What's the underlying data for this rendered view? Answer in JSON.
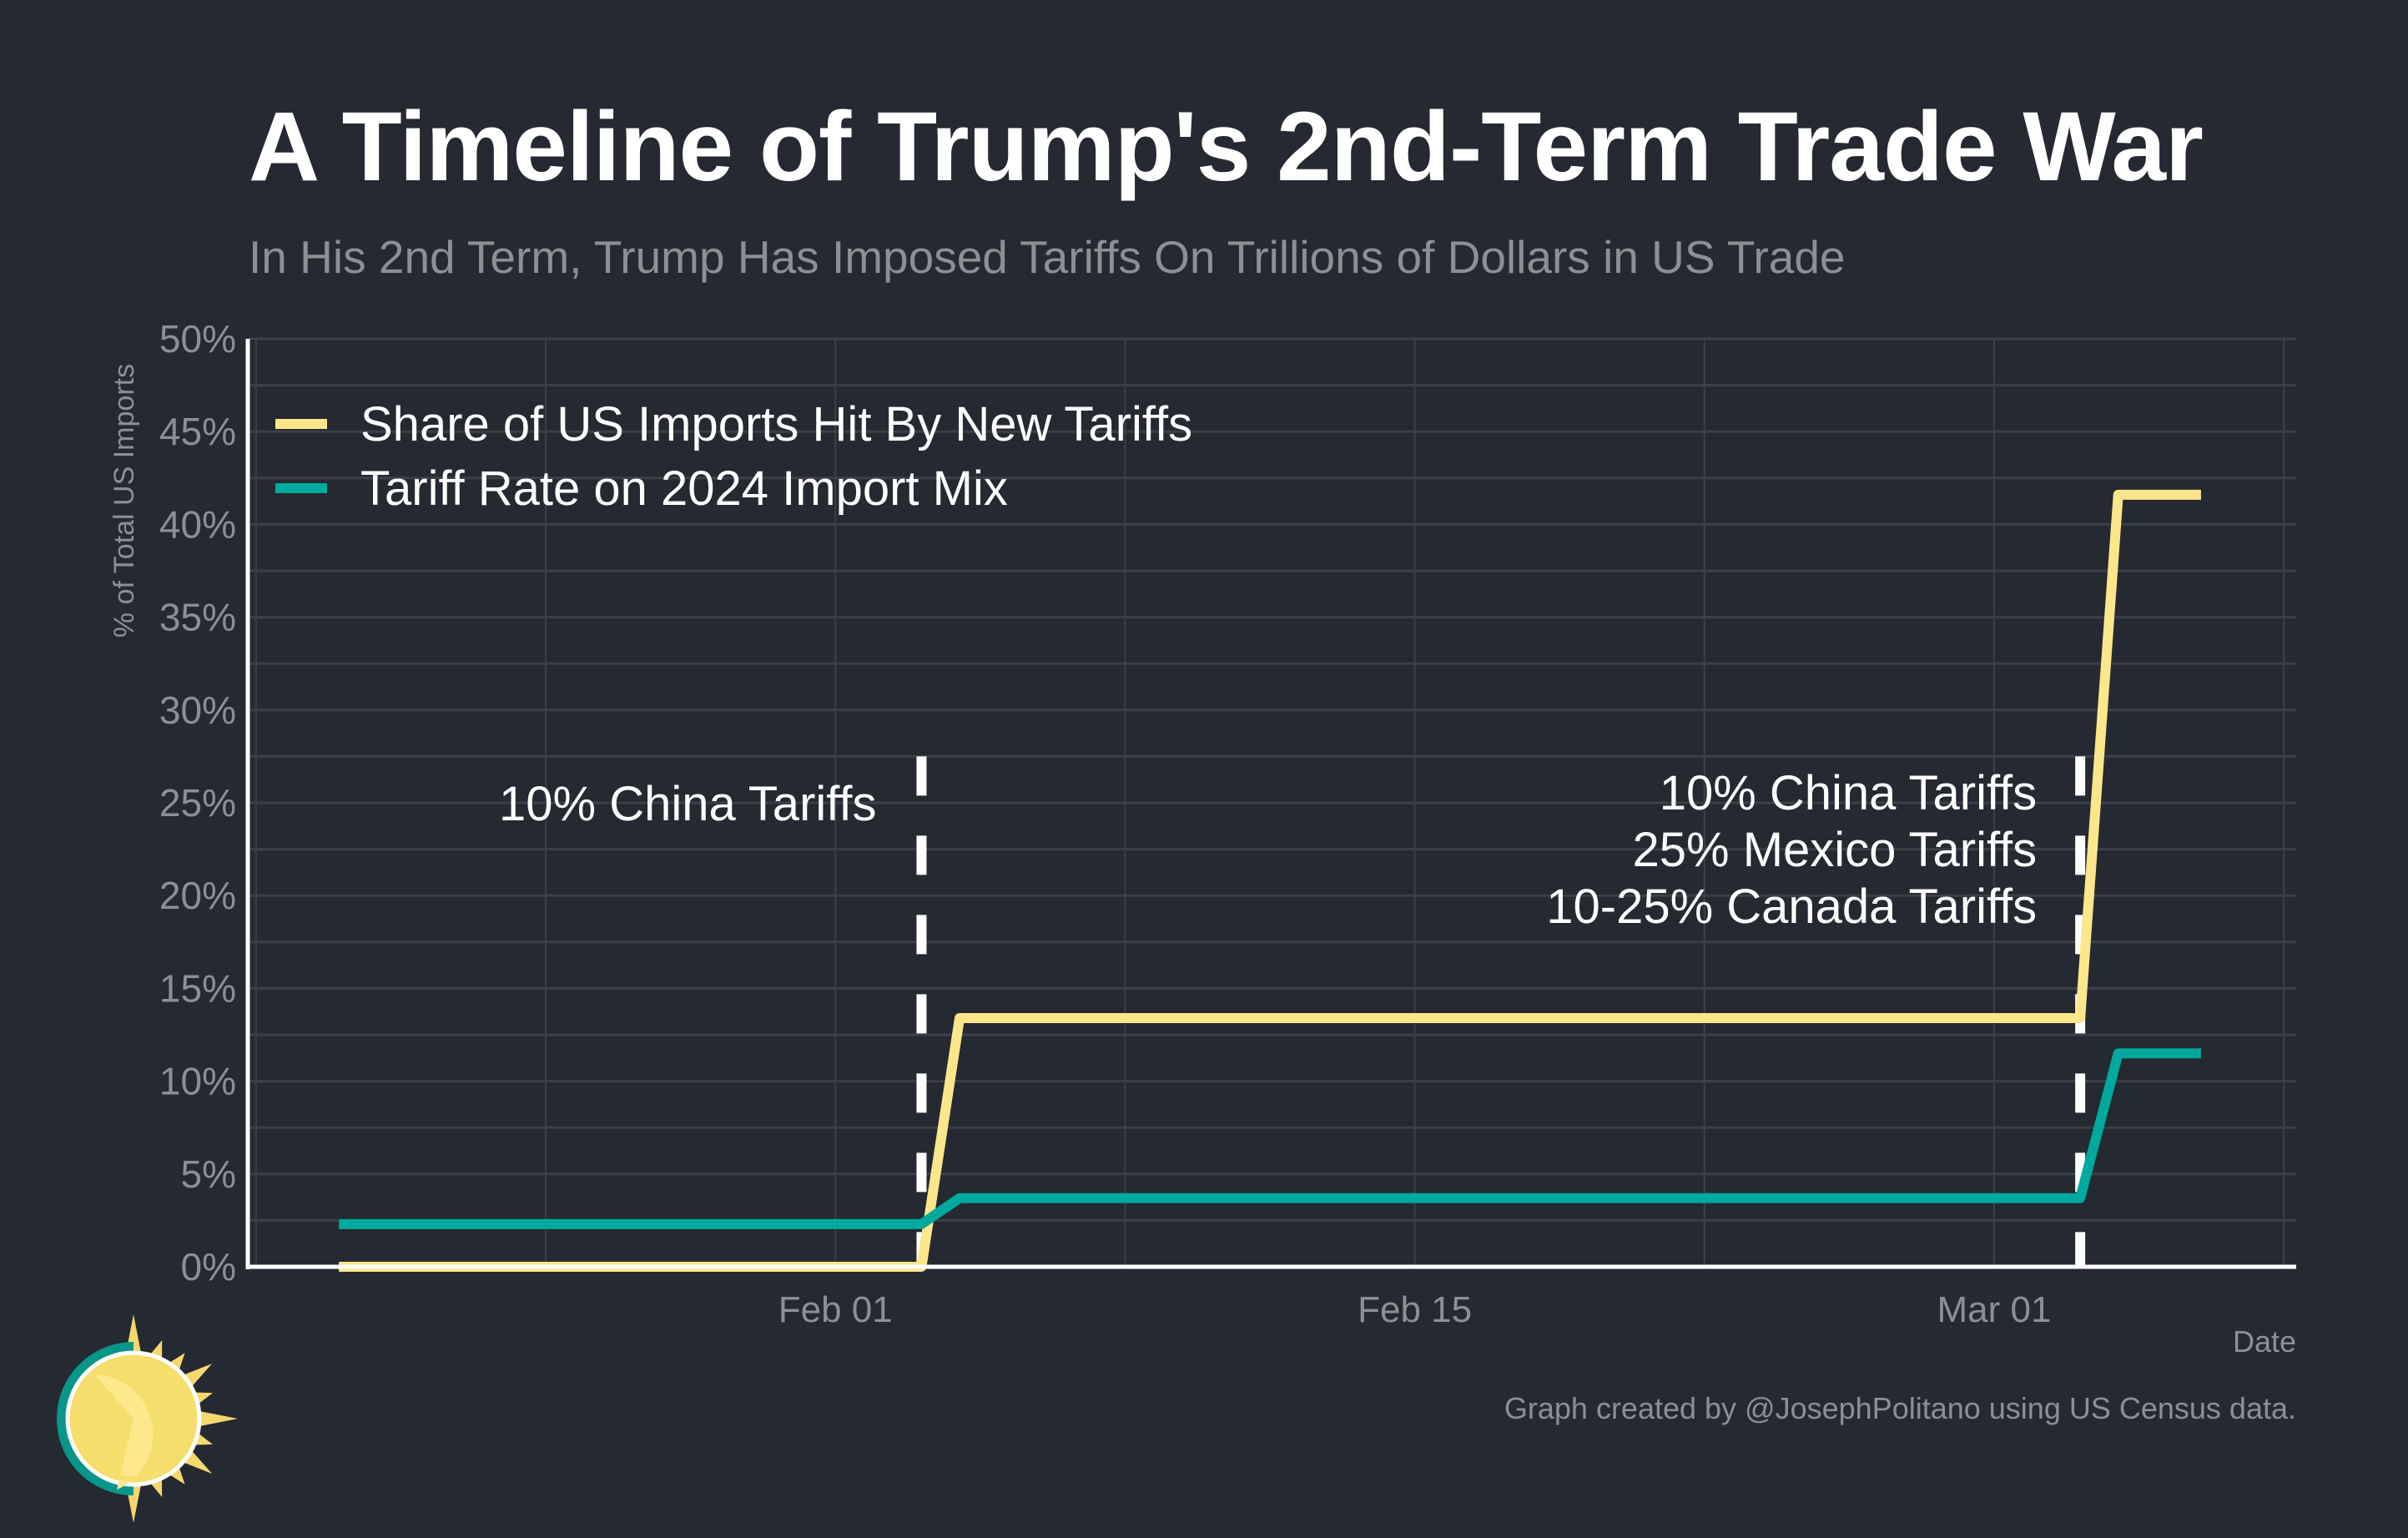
{
  "title": "A Timeline of Trump's 2nd-Term Trade War",
  "subtitle": "In His 2nd Term, Trump Has Imposed Tariffs On Trillions of Dollars in US Trade",
  "caption": "Graph created by @JosephPolitano using US Census data.",
  "logo_icon": "sun-logo-icon",
  "colors": {
    "background": "#252932",
    "grid": "#3c4049",
    "axis": "#ffffff",
    "tick_text": "#8e8f94",
    "share_series": "#fde68a",
    "rate_series": "#00a99d",
    "annotation": "#ffffff"
  },
  "chart_data": {
    "type": "line",
    "title": "A Timeline of Trump's 2nd-Term Trade War",
    "subtitle": "In His 2nd Term, Trump Has Imposed Tariffs On Trillions of Dollars in US Trade",
    "xlabel": "Date",
    "ylabel": "% of Total US Imports",
    "xlim": [
      "2025-01-17",
      "2025-03-08"
    ],
    "ylim": [
      0,
      50
    ],
    "yticks": [
      0,
      5,
      10,
      15,
      20,
      25,
      30,
      35,
      40,
      45,
      50
    ],
    "ytick_labels": [
      "0%",
      "5%",
      "10%",
      "15%",
      "20%",
      "25%",
      "30%",
      "35%",
      "40%",
      "45%",
      "50%"
    ],
    "xticks": [
      "2025-02-01",
      "2025-02-15",
      "2025-03-01"
    ],
    "xtick_labels": [
      "Feb 01",
      "Feb 15",
      "Mar 01"
    ],
    "minor_xgrid": [
      "2025-01-18",
      "2025-01-25",
      "2025-02-08",
      "2025-02-22",
      "2025-03-08"
    ],
    "grid": true,
    "legend_position": "top-left",
    "x": [
      "2025-01-20",
      "2025-02-03",
      "2025-02-04",
      "2025-03-03",
      "2025-03-04",
      "2025-03-06"
    ],
    "series": [
      {
        "name": "Share of US Imports Hit By New Tariffs",
        "color": "#fde68a",
        "values": [
          0,
          0,
          13.4,
          13.4,
          41.6,
          41.6
        ]
      },
      {
        "name": "Tariff Rate on 2024 Import Mix",
        "color": "#00a99d",
        "values": [
          2.3,
          2.3,
          3.7,
          3.7,
          11.5,
          11.5
        ]
      }
    ],
    "annotations": [
      {
        "date": "2025-02-03",
        "style": "dashed-vline",
        "lines": [
          "10% China Tariffs"
        ]
      },
      {
        "date": "2025-03-03",
        "style": "dashed-vline",
        "lines": [
          "10% China Tariffs",
          "25% Mexico Tariffs",
          "10-25% Canada Tariffs"
        ]
      }
    ]
  }
}
